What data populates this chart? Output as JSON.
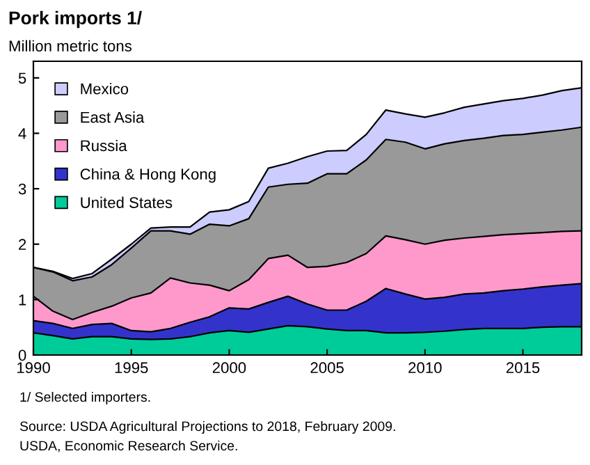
{
  "chart_data": {
    "type": "area",
    "stacked": true,
    "title": "Pork imports 1/",
    "subtitle": "Million metric tons",
    "annotations": [
      "1/ Selected importers.",
      "Source: USDA Agricultural Projections to 2018, February 2009.",
      "USDA, Economic Research Service."
    ],
    "x": [
      1990,
      1991,
      1992,
      1993,
      1994,
      1995,
      1996,
      1997,
      1998,
      1999,
      2000,
      2001,
      2002,
      2003,
      2004,
      2005,
      2006,
      2007,
      2008,
      2009,
      2010,
      2011,
      2012,
      2013,
      2014,
      2015,
      2016,
      2017,
      2018
    ],
    "series": [
      {
        "name": "United States",
        "color": "#00cc99",
        "values": [
          0.4,
          0.35,
          0.29,
          0.33,
          0.33,
          0.29,
          0.28,
          0.29,
          0.33,
          0.4,
          0.44,
          0.41,
          0.47,
          0.53,
          0.51,
          0.47,
          0.44,
          0.44,
          0.4,
          0.4,
          0.41,
          0.43,
          0.46,
          0.48,
          0.48,
          0.48,
          0.5,
          0.51,
          0.51
        ]
      },
      {
        "name": "China & Hong Kong",
        "color": "#3333cc",
        "values": [
          0.22,
          0.22,
          0.19,
          0.22,
          0.24,
          0.15,
          0.14,
          0.19,
          0.26,
          0.29,
          0.41,
          0.42,
          0.48,
          0.53,
          0.41,
          0.34,
          0.37,
          0.53,
          0.8,
          0.7,
          0.6,
          0.61,
          0.64,
          0.64,
          0.68,
          0.71,
          0.73,
          0.75,
          0.78
        ]
      },
      {
        "name": "Russia",
        "color": "#ff99cc",
        "values": [
          0.44,
          0.22,
          0.16,
          0.22,
          0.31,
          0.59,
          0.7,
          0.91,
          0.71,
          0.57,
          0.31,
          0.53,
          0.79,
          0.74,
          0.66,
          0.79,
          0.86,
          0.86,
          0.95,
          0.98,
          0.99,
          1.03,
          1.01,
          1.02,
          1.01,
          1.0,
          0.98,
          0.97,
          0.95
        ]
      },
      {
        "name": "East Asia",
        "color": "#999999",
        "values": [
          0.52,
          0.71,
          0.7,
          0.64,
          0.75,
          0.9,
          1.12,
          0.85,
          0.88,
          1.1,
          1.17,
          1.1,
          1.29,
          1.28,
          1.52,
          1.67,
          1.6,
          1.69,
          1.74,
          1.76,
          1.72,
          1.74,
          1.76,
          1.77,
          1.79,
          1.79,
          1.81,
          1.83,
          1.87
        ]
      },
      {
        "name": "Mexico",
        "color": "#ccccff",
        "values": [
          0.0,
          0.01,
          0.04,
          0.06,
          0.1,
          0.07,
          0.05,
          0.07,
          0.13,
          0.22,
          0.29,
          0.31,
          0.34,
          0.38,
          0.48,
          0.41,
          0.42,
          0.46,
          0.53,
          0.51,
          0.57,
          0.56,
          0.6,
          0.62,
          0.63,
          0.65,
          0.67,
          0.71,
          0.71
        ]
      }
    ],
    "xlim": [
      1990,
      2018
    ],
    "xticks": [
      1990,
      1995,
      2000,
      2005,
      2010,
      2015
    ],
    "ylim": [
      0,
      5.3
    ],
    "yticks": [
      0,
      1,
      2,
      3,
      4,
      5
    ],
    "grid": false,
    "legend": "top left"
  }
}
